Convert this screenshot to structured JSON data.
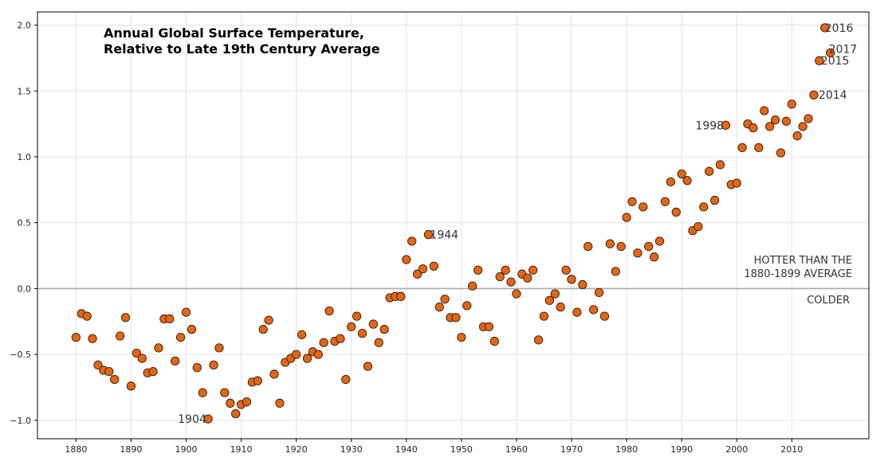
{
  "chart_data": {
    "type": "scatter",
    "title_lines": [
      "Annual Global Surface Temperature,",
      "Relative to Late 19th Century Average"
    ],
    "xlabel": "",
    "ylabel": "",
    "xlim": [
      1873,
      2024
    ],
    "ylim": [
      -1.14,
      2.1
    ],
    "x_ticks": [
      1880,
      1890,
      1900,
      1910,
      1920,
      1930,
      1940,
      1950,
      1960,
      1970,
      1980,
      1990,
      2000,
      2010
    ],
    "y_ticks": [
      -1.0,
      -0.5,
      0.0,
      0.5,
      1.0,
      1.5,
      2.0
    ],
    "x_tick_labels": [
      "1880",
      "1890",
      "1900",
      "1910",
      "1920",
      "1930",
      "1940",
      "1950",
      "1960",
      "1970",
      "1980",
      "1990",
      "2000",
      "2010"
    ],
    "y_tick_labels": [
      "−1.0",
      "−0.5",
      "0.0",
      "0.5",
      "1.0",
      "1.5",
      "2.0"
    ],
    "grid": true,
    "reference_line": 0.0,
    "marker_color": "#e8650e",
    "x": [
      1880,
      1881,
      1882,
      1883,
      1884,
      1885,
      1886,
      1887,
      1888,
      1889,
      1890,
      1891,
      1892,
      1893,
      1894,
      1895,
      1896,
      1897,
      1898,
      1899,
      1900,
      1901,
      1902,
      1903,
      1904,
      1905,
      1906,
      1907,
      1908,
      1909,
      1910,
      1911,
      1912,
      1913,
      1914,
      1915,
      1916,
      1917,
      1918,
      1919,
      1920,
      1921,
      1922,
      1923,
      1924,
      1925,
      1926,
      1927,
      1928,
      1929,
      1930,
      1931,
      1932,
      1933,
      1934,
      1935,
      1936,
      1937,
      1938,
      1939,
      1940,
      1941,
      1942,
      1943,
      1944,
      1945,
      1946,
      1947,
      1948,
      1949,
      1950,
      1951,
      1952,
      1953,
      1954,
      1955,
      1956,
      1957,
      1958,
      1959,
      1960,
      1961,
      1962,
      1963,
      1964,
      1965,
      1966,
      1967,
      1968,
      1969,
      1970,
      1971,
      1972,
      1973,
      1974,
      1975,
      1976,
      1977,
      1978,
      1979,
      1980,
      1981,
      1982,
      1983,
      1984,
      1985,
      1986,
      1987,
      1988,
      1989,
      1990,
      1991,
      1992,
      1993,
      1994,
      1995,
      1996,
      1997,
      1998,
      1999,
      2000,
      2001,
      2002,
      2003,
      2004,
      2005,
      2006,
      2007,
      2008,
      2009,
      2010,
      2011,
      2012,
      2013,
      2014,
      2015,
      2016,
      2017
    ],
    "y": [
      -0.37,
      -0.19,
      -0.21,
      -0.38,
      -0.58,
      -0.62,
      -0.63,
      -0.69,
      -0.36,
      -0.22,
      -0.74,
      -0.49,
      -0.53,
      -0.64,
      -0.63,
      -0.45,
      -0.23,
      -0.23,
      -0.55,
      -0.37,
      -0.18,
      -0.31,
      -0.6,
      -0.79,
      -0.99,
      -0.58,
      -0.45,
      -0.79,
      -0.87,
      -0.95,
      -0.88,
      -0.86,
      -0.71,
      -0.7,
      -0.31,
      -0.24,
      -0.65,
      -0.87,
      -0.56,
      -0.53,
      -0.5,
      -0.35,
      -0.53,
      -0.48,
      -0.5,
      -0.41,
      -0.17,
      -0.4,
      -0.38,
      -0.69,
      -0.29,
      -0.21,
      -0.34,
      -0.59,
      -0.27,
      -0.41,
      -0.31,
      -0.07,
      -0.06,
      -0.06,
      0.22,
      0.36,
      0.11,
      0.15,
      0.41,
      0.17,
      -0.14,
      -0.08,
      -0.22,
      -0.22,
      -0.37,
      -0.13,
      0.02,
      0.14,
      -0.29,
      -0.29,
      -0.4,
      0.09,
      0.14,
      0.05,
      -0.04,
      0.11,
      0.08,
      0.14,
      -0.39,
      -0.21,
      -0.09,
      -0.04,
      -0.14,
      0.14,
      0.07,
      -0.18,
      0.03,
      0.32,
      -0.16,
      -0.03,
      -0.21,
      0.34,
      0.13,
      0.32,
      0.54,
      0.66,
      0.27,
      0.62,
      0.32,
      0.24,
      0.36,
      0.66,
      0.81,
      0.58,
      0.87,
      0.82,
      0.44,
      0.47,
      0.62,
      0.89,
      0.67,
      0.94,
      1.24,
      0.79,
      0.8,
      1.07,
      1.25,
      1.22,
      1.07,
      1.35,
      1.23,
      1.28,
      1.03,
      1.27,
      1.4,
      1.16,
      1.23,
      1.29,
      1.47,
      1.73,
      1.98,
      1.79
    ],
    "annotations": [
      {
        "label": "1904",
        "x": 1904,
        "y": -0.99
      },
      {
        "label": "1944",
        "x": 1944,
        "y": 0.41
      },
      {
        "label": "1998",
        "x": 1998,
        "y": 1.24
      },
      {
        "label": "2014",
        "x": 2014,
        "y": 1.47
      },
      {
        "label": "2015",
        "x": 2015,
        "y": 1.73
      },
      {
        "label": "2016",
        "x": 2016,
        "y": 1.98
      },
      {
        "label": "2017",
        "x": 2017,
        "y": 1.79
      }
    ],
    "notes": {
      "hotter_line1": "HOTTER THAN THE",
      "hotter_line2": "1880-1899 AVERAGE",
      "colder": "COLDER"
    }
  }
}
